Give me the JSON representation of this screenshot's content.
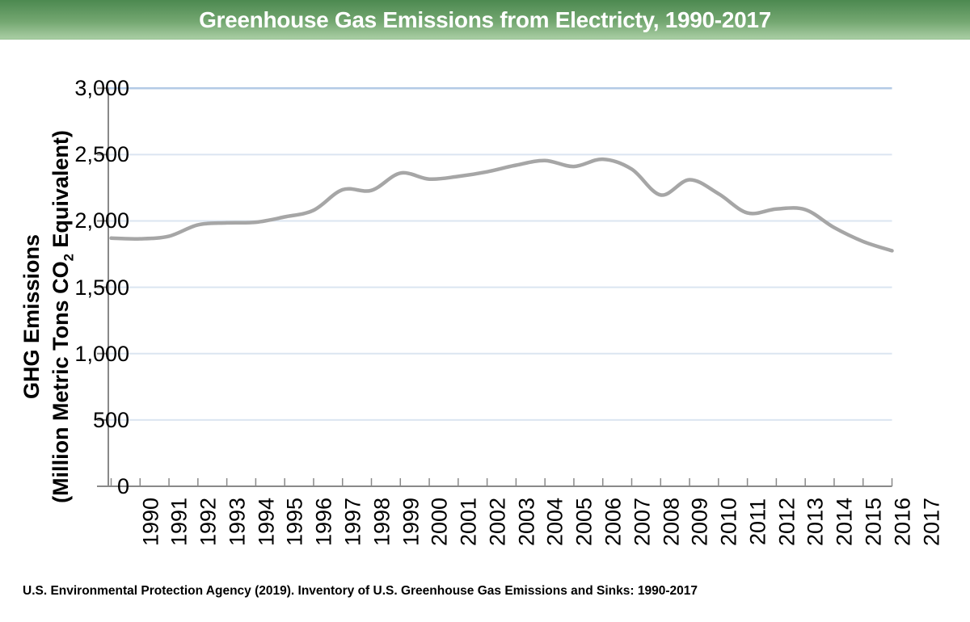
{
  "header": {
    "title": "Greenhouse Gas Emissions from Electricty, 1990-2017"
  },
  "chart": {
    "ylabel_line1": "GHG Emissions",
    "ylabel_line2_pre": "(Million Metric Tons CO",
    "ylabel_line2_sub": "2",
    "ylabel_line2_post": " Equivalent)"
  },
  "chart_data": {
    "type": "line",
    "title": "Greenhouse Gas Emissions from Electricty, 1990-2017",
    "xlabel": "",
    "ylabel": "GHG Emissions (Million Metric Tons CO2 Equivalent)",
    "categories": [
      "1990",
      "1991",
      "1992",
      "1993",
      "1994",
      "1995",
      "1996",
      "1997",
      "1998",
      "1999",
      "2000",
      "2001",
      "2002",
      "2003",
      "2004",
      "2005",
      "2006",
      "2007",
      "2008",
      "2009",
      "2010",
      "2011",
      "2012",
      "2013",
      "2014",
      "2015",
      "2016",
      "2017"
    ],
    "values": [
      1870,
      1865,
      1885,
      1970,
      1985,
      1990,
      2030,
      2080,
      2235,
      2230,
      2360,
      2315,
      2335,
      2370,
      2420,
      2455,
      2410,
      2465,
      2390,
      2195,
      2310,
      2205,
      2060,
      2090,
      2085,
      1950,
      1845,
      1775
    ],
    "ylim": [
      0,
      3000
    ],
    "y_ticks": [
      0,
      500,
      1000,
      1500,
      2000,
      2500,
      3000
    ],
    "y_tick_labels": [
      "0",
      "500",
      "1,000",
      "1,500",
      "2,000",
      "2,500",
      "3,000"
    ],
    "grid": "horizontal",
    "legend": "none",
    "smooth_line": true
  },
  "colors": {
    "header_gradient_top": "#4c8950",
    "header_gradient_bottom": "#a8cda3",
    "title_text": "#ffffff",
    "line": "#a6a6a6",
    "gridline": "#dbe5f1",
    "top_gridline": "#b3cae6",
    "axis": "#898989",
    "label_text": "#000000"
  },
  "footer": {
    "text": "U.S. Environmental Protection Agency (2019). Inventory of U.S. Greenhouse Gas Emissions and Sinks: 1990-2017"
  }
}
